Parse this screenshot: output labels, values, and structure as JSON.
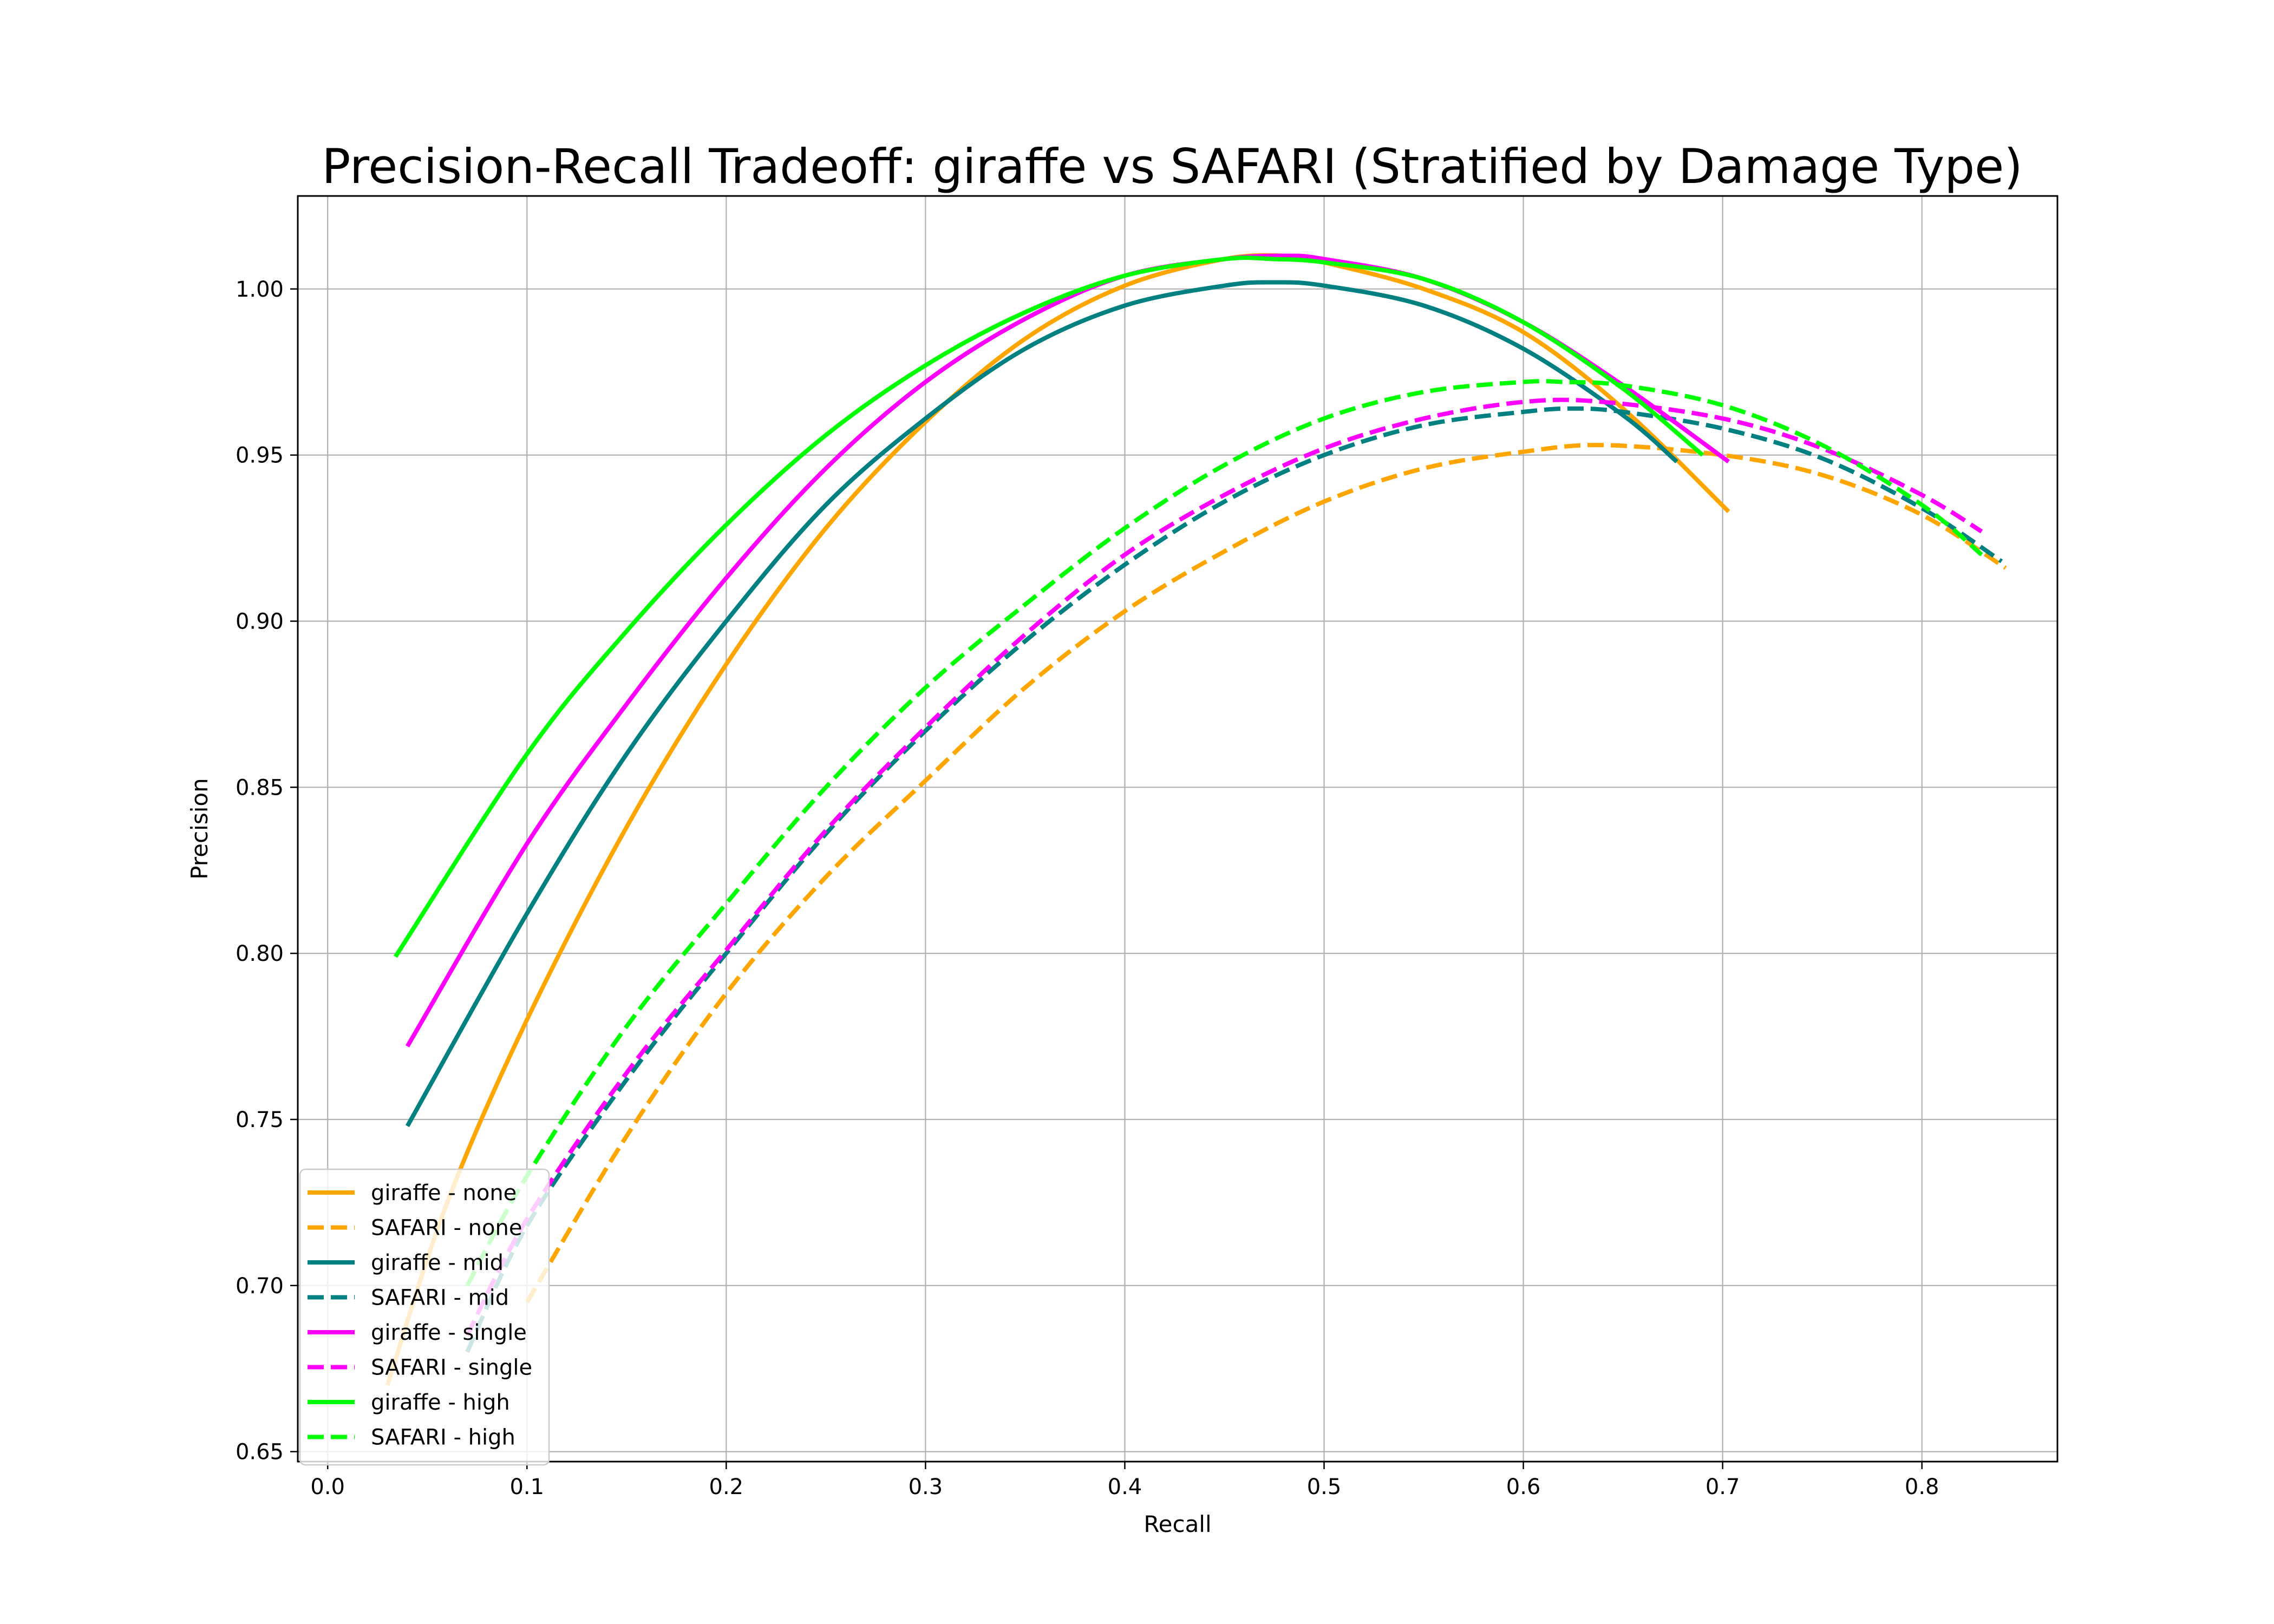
{
  "chart_data": {
    "type": "line",
    "title": "Precision-Recall Tradeoff: giraffe vs SAFARI (Stratified by Damage Type)",
    "xlabel": "Recall",
    "ylabel": "Precision",
    "xlim": [
      -0.015,
      0.868
    ],
    "ylim": [
      0.647,
      1.028
    ],
    "xticks": [
      0.0,
      0.1,
      0.2,
      0.3,
      0.4,
      0.5,
      0.6,
      0.7,
      0.8
    ],
    "xtick_labels": [
      "0.0",
      "0.1",
      "0.2",
      "0.3",
      "0.4",
      "0.5",
      "0.6",
      "0.7",
      "0.8"
    ],
    "yticks": [
      0.65,
      0.7,
      0.75,
      0.8,
      0.85,
      0.9,
      0.95,
      1.0
    ],
    "ytick_labels": [
      "0.65",
      "0.70",
      "0.75",
      "0.80",
      "0.85",
      "0.90",
      "0.95",
      "1.00"
    ],
    "grid": true,
    "legend_position": "lower-left",
    "series": [
      {
        "name": "giraffe - none",
        "color": "#FFA500",
        "style": "solid",
        "x": [
          0.03,
          0.06,
          0.1,
          0.15,
          0.2,
          0.25,
          0.3,
          0.35,
          0.4,
          0.45,
          0.48,
          0.5,
          0.55,
          0.6,
          0.65,
          0.703
        ],
        "y": [
          0.67,
          0.725,
          0.78,
          0.838,
          0.887,
          0.928,
          0.96,
          0.985,
          1.001,
          1.009,
          1.01,
          1.008,
          1.0,
          0.987,
          0.964,
          0.933
        ]
      },
      {
        "name": "SAFARI - none",
        "color": "#FFA500",
        "style": "dashed",
        "x": [
          0.1,
          0.15,
          0.2,
          0.25,
          0.3,
          0.35,
          0.4,
          0.45,
          0.5,
          0.55,
          0.6,
          0.64,
          0.7,
          0.75,
          0.8,
          0.842
        ],
        "y": [
          0.695,
          0.745,
          0.788,
          0.823,
          0.852,
          0.88,
          0.903,
          0.921,
          0.936,
          0.946,
          0.951,
          0.953,
          0.95,
          0.944,
          0.932,
          0.916
        ]
      },
      {
        "name": "giraffe - mid",
        "color": "#008080",
        "style": "solid",
        "x": [
          0.04,
          0.1,
          0.15,
          0.2,
          0.25,
          0.3,
          0.35,
          0.4,
          0.45,
          0.475,
          0.5,
          0.55,
          0.6,
          0.65,
          0.677
        ],
        "y": [
          0.748,
          0.812,
          0.86,
          0.9,
          0.935,
          0.961,
          0.982,
          0.995,
          1.001,
          1.002,
          1.001,
          0.995,
          0.982,
          0.962,
          0.948
        ]
      },
      {
        "name": "SAFARI - mid",
        "color": "#008080",
        "style": "dashed",
        "x": [
          0.07,
          0.1,
          0.15,
          0.2,
          0.25,
          0.3,
          0.35,
          0.4,
          0.45,
          0.5,
          0.55,
          0.6,
          0.625,
          0.65,
          0.7,
          0.75,
          0.8,
          0.84
        ],
        "y": [
          0.68,
          0.718,
          0.762,
          0.8,
          0.836,
          0.867,
          0.894,
          0.917,
          0.936,
          0.95,
          0.959,
          0.963,
          0.964,
          0.963,
          0.958,
          0.949,
          0.934,
          0.918
        ]
      },
      {
        "name": "giraffe - single",
        "color": "#FF00FF",
        "style": "solid",
        "x": [
          0.04,
          0.1,
          0.15,
          0.2,
          0.25,
          0.3,
          0.35,
          0.4,
          0.45,
          0.48,
          0.5,
          0.55,
          0.6,
          0.65,
          0.703
        ],
        "y": [
          0.772,
          0.833,
          0.875,
          0.913,
          0.946,
          0.972,
          0.991,
          1.004,
          1.009,
          1.01,
          1.009,
          1.003,
          0.99,
          0.971,
          0.948
        ]
      },
      {
        "name": "SAFARI - single",
        "color": "#FF00FF",
        "style": "dashed",
        "x": [
          0.07,
          0.1,
          0.15,
          0.2,
          0.25,
          0.3,
          0.35,
          0.4,
          0.45,
          0.5,
          0.55,
          0.6,
          0.64,
          0.7,
          0.75,
          0.8,
          0.83
        ],
        "y": [
          0.685,
          0.72,
          0.764,
          0.801,
          0.837,
          0.868,
          0.896,
          0.92,
          0.938,
          0.952,
          0.961,
          0.966,
          0.966,
          0.961,
          0.952,
          0.938,
          0.927
        ]
      },
      {
        "name": "giraffe - high",
        "color": "#00FF00",
        "style": "solid",
        "x": [
          0.034,
          0.1,
          0.15,
          0.2,
          0.25,
          0.3,
          0.35,
          0.4,
          0.45,
          0.475,
          0.5,
          0.55,
          0.6,
          0.65,
          0.69
        ],
        "y": [
          0.799,
          0.86,
          0.897,
          0.929,
          0.956,
          0.977,
          0.993,
          1.004,
          1.009,
          1.009,
          1.008,
          1.003,
          0.99,
          0.97,
          0.95
        ]
      },
      {
        "name": "SAFARI - high",
        "color": "#00FF00",
        "style": "dashed",
        "x": [
          0.07,
          0.1,
          0.15,
          0.2,
          0.25,
          0.3,
          0.35,
          0.4,
          0.45,
          0.5,
          0.55,
          0.6,
          0.62,
          0.65,
          0.7,
          0.75,
          0.8,
          0.83
        ],
        "y": [
          0.7,
          0.733,
          0.778,
          0.815,
          0.85,
          0.88,
          0.905,
          0.928,
          0.947,
          0.961,
          0.969,
          0.972,
          0.972,
          0.971,
          0.965,
          0.953,
          0.935,
          0.92
        ]
      }
    ]
  }
}
